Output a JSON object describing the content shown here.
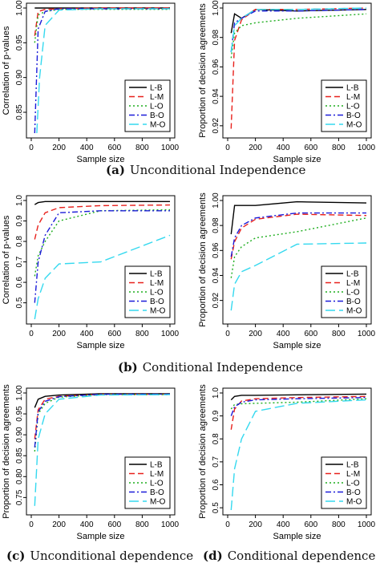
{
  "captions": {
    "a_letter": "(a)",
    "a_text": "Unconditional Independence",
    "b_letter": "(b)",
    "b_text": "Conditional Independence",
    "c_letter": "(c)",
    "c_text": "Unconditional dependence",
    "d_letter": "(d)",
    "d_text": "Conditional dependence"
  },
  "series_styles": {
    "L-B": {
      "color": "#000000",
      "dash": "none"
    },
    "L-M": {
      "color": "#e8211c",
      "dash": "7,4"
    },
    "L-O": {
      "color": "#1fae1f",
      "dash": "2,3"
    },
    "B-O": {
      "color": "#1b1bd9",
      "dash": "7,3,2,3"
    },
    "M-O": {
      "color": "#35d9ef",
      "dash": "12,5"
    }
  },
  "chart_data": [
    {
      "id": "a_left",
      "type": "line",
      "xlabel": "Sample size",
      "ylabel": "Correlation of p-values",
      "xlim": [
        0,
        1000
      ],
      "ylim": [
        0.82,
        1.0
      ],
      "xticks": [
        0,
        200,
        400,
        600,
        800,
        1000
      ],
      "yticks": [
        0.85,
        0.9,
        0.95,
        1.0
      ],
      "legend": "bottom-right",
      "series": [
        {
          "name": "L-B",
          "x": [
            25,
            50,
            100,
            200,
            500,
            1000
          ],
          "y": [
            1.0,
            1.0,
            1.0,
            1.0,
            1.0,
            1.0
          ]
        },
        {
          "name": "L-M",
          "x": [
            25,
            50,
            100,
            200,
            500,
            1000
          ],
          "y": [
            0.96,
            0.995,
            0.998,
            0.999,
            1.0,
            1.0
          ]
        },
        {
          "name": "L-O",
          "x": [
            25,
            50,
            100,
            200,
            500,
            1000
          ],
          "y": [
            0.95,
            0.99,
            0.995,
            0.998,
            0.998,
            0.998
          ]
        },
        {
          "name": "B-O",
          "x": [
            25,
            50,
            100,
            200,
            500,
            1000
          ],
          "y": [
            0.82,
            0.97,
            0.995,
            0.999,
            0.999,
            0.999
          ]
        },
        {
          "name": "M-O",
          "x": [
            40,
            60,
            100,
            200,
            500,
            1000
          ],
          "y": [
            0.82,
            0.9,
            0.975,
            0.997,
            0.999,
            0.999
          ]
        }
      ]
    },
    {
      "id": "a_right",
      "type": "line",
      "xlabel": "Sample size",
      "ylabel": "Proportion of decision agreements",
      "xlim": [
        0,
        1000
      ],
      "ylim": [
        0.915,
        1.0
      ],
      "xticks": [
        0,
        200,
        400,
        600,
        800,
        1000
      ],
      "yticks": [
        0.92,
        0.94,
        0.96,
        0.98,
        1.0
      ],
      "legend": "bottom-right",
      "series": [
        {
          "name": "L-B",
          "x": [
            25,
            50,
            100,
            200,
            500,
            1000
          ],
          "y": [
            0.983,
            0.996,
            0.993,
            0.999,
            0.998,
            0.999
          ]
        },
        {
          "name": "L-M",
          "x": [
            25,
            50,
            100,
            200,
            500,
            1000
          ],
          "y": [
            0.918,
            0.978,
            0.992,
            0.999,
            0.999,
            1.0
          ]
        },
        {
          "name": "L-O",
          "x": [
            25,
            50,
            100,
            200,
            500,
            1000
          ],
          "y": [
            0.966,
            0.983,
            0.988,
            0.99,
            0.993,
            0.996
          ]
        },
        {
          "name": "B-O",
          "x": [
            25,
            50,
            100,
            200,
            500,
            1000
          ],
          "y": [
            0.97,
            0.99,
            0.993,
            0.998,
            0.998,
            0.999
          ]
        },
        {
          "name": "M-O",
          "x": [
            25,
            50,
            100,
            200,
            500,
            1000
          ],
          "y": [
            0.97,
            0.988,
            0.993,
            0.999,
            0.999,
            1.0
          ]
        }
      ]
    },
    {
      "id": "b_left",
      "type": "line",
      "xlabel": "Sample size",
      "ylabel": "Correlation of p-values",
      "xlim": [
        0,
        1000
      ],
      "ylim": [
        0.42,
        1.0
      ],
      "xticks": [
        0,
        200,
        400,
        600,
        800,
        1000
      ],
      "yticks": [
        0.5,
        0.6,
        0.7,
        0.8,
        0.9,
        1.0
      ],
      "legend": "bottom-right",
      "series": [
        {
          "name": "L-B",
          "x": [
            25,
            50,
            100,
            200,
            500,
            1000
          ],
          "y": [
            0.98,
            0.99,
            0.995,
            0.995,
            0.995,
            0.995
          ]
        },
        {
          "name": "L-M",
          "x": [
            25,
            50,
            100,
            200,
            500,
            1000
          ],
          "y": [
            0.81,
            0.88,
            0.94,
            0.965,
            0.975,
            0.978
          ]
        },
        {
          "name": "L-O",
          "x": [
            25,
            50,
            100,
            200,
            500,
            1000
          ],
          "y": [
            0.63,
            0.73,
            0.8,
            0.9,
            0.95,
            0.955
          ]
        },
        {
          "name": "B-O",
          "x": [
            25,
            50,
            100,
            200,
            500,
            1000
          ],
          "y": [
            0.5,
            0.7,
            0.83,
            0.94,
            0.95,
            0.95
          ]
        },
        {
          "name": "M-O",
          "x": [
            25,
            50,
            100,
            200,
            500,
            1000
          ],
          "y": [
            0.42,
            0.52,
            0.62,
            0.69,
            0.7,
            0.83
          ]
        }
      ]
    },
    {
      "id": "b_right",
      "type": "line",
      "xlabel": "Sample size",
      "ylabel": "Proportion of decision agreements",
      "xlim": [
        0,
        1000
      ],
      "ylim": [
        0.905,
        1.0
      ],
      "xticks": [
        0,
        200,
        400,
        600,
        800,
        1000
      ],
      "yticks": [
        0.92,
        0.94,
        0.96,
        0.98,
        1.0
      ],
      "legend": "bottom-right",
      "series": [
        {
          "name": "L-B",
          "x": [
            25,
            50,
            100,
            200,
            500,
            1000
          ],
          "y": [
            0.973,
            0.996,
            0.996,
            0.996,
            0.999,
            0.998
          ]
        },
        {
          "name": "L-M",
          "x": [
            25,
            50,
            100,
            200,
            500,
            1000
          ],
          "y": [
            0.953,
            0.967,
            0.978,
            0.985,
            0.989,
            0.988
          ]
        },
        {
          "name": "L-O",
          "x": [
            25,
            50,
            100,
            200,
            500,
            1000
          ],
          "y": [
            0.938,
            0.955,
            0.963,
            0.97,
            0.975,
            0.986
          ]
        },
        {
          "name": "B-O",
          "x": [
            25,
            50,
            100,
            200,
            500,
            1000
          ],
          "y": [
            0.955,
            0.97,
            0.98,
            0.986,
            0.99,
            0.99
          ]
        },
        {
          "name": "M-O",
          "x": [
            25,
            50,
            100,
            200,
            500,
            1000
          ],
          "y": [
            0.912,
            0.933,
            0.943,
            0.948,
            0.965,
            0.966
          ]
        }
      ]
    },
    {
      "id": "c_left",
      "type": "line",
      "xlabel": "Sample size",
      "ylabel": "Proportion of decision agreements",
      "xlim": [
        0,
        1000
      ],
      "ylim": [
        0.72,
        1.0
      ],
      "xticks": [
        0,
        200,
        400,
        600,
        800,
        1000
      ],
      "yticks": [
        0.75,
        0.8,
        0.85,
        0.9,
        0.95,
        1.0
      ],
      "legend": "bottom-right",
      "series": [
        {
          "name": "L-B",
          "x": [
            25,
            50,
            100,
            200,
            500,
            1000
          ],
          "y": [
            0.965,
            0.985,
            0.992,
            0.995,
            0.998,
            0.998
          ]
        },
        {
          "name": "L-M",
          "x": [
            25,
            50,
            100,
            200,
            500,
            1000
          ],
          "y": [
            0.89,
            0.96,
            0.985,
            0.992,
            0.997,
            0.997
          ]
        },
        {
          "name": "L-O",
          "x": [
            25,
            50,
            100,
            200,
            500,
            1000
          ],
          "y": [
            0.86,
            0.95,
            0.975,
            0.99,
            0.996,
            0.996
          ]
        },
        {
          "name": "B-O",
          "x": [
            25,
            50,
            100,
            200,
            500,
            1000
          ],
          "y": [
            0.87,
            0.955,
            0.98,
            0.991,
            0.997,
            0.997
          ]
        },
        {
          "name": "M-O",
          "x": [
            25,
            50,
            100,
            200,
            500,
            1000
          ],
          "y": [
            0.73,
            0.89,
            0.95,
            0.985,
            0.995,
            0.996
          ]
        }
      ]
    },
    {
      "id": "d_left",
      "type": "line",
      "xlabel": "Sample size",
      "ylabel": "Proportion of decision agreements",
      "xlim": [
        0,
        1000
      ],
      "ylim": [
        0.49,
        1.0
      ],
      "xticks": [
        0,
        200,
        400,
        600,
        800,
        1000
      ],
      "yticks": [
        0.5,
        0.6,
        0.7,
        0.8,
        0.9,
        1.0
      ],
      "legend": "bottom-right",
      "series": [
        {
          "name": "L-B",
          "x": [
            25,
            50,
            100,
            200,
            500,
            1000
          ],
          "y": [
            0.97,
            0.985,
            0.99,
            0.99,
            0.992,
            0.995
          ]
        },
        {
          "name": "L-M",
          "x": [
            25,
            50,
            100,
            200,
            500,
            1000
          ],
          "y": [
            0.84,
            0.93,
            0.965,
            0.975,
            0.98,
            0.985
          ]
        },
        {
          "name": "L-O",
          "x": [
            25,
            50,
            100,
            200,
            500,
            1000
          ],
          "y": [
            0.93,
            0.95,
            0.953,
            0.955,
            0.96,
            0.975
          ]
        },
        {
          "name": "B-O",
          "x": [
            25,
            50,
            100,
            200,
            500,
            1000
          ],
          "y": [
            0.9,
            0.94,
            0.96,
            0.97,
            0.975,
            0.98
          ]
        },
        {
          "name": "M-O",
          "x": [
            25,
            50,
            100,
            200,
            500,
            1000
          ],
          "y": [
            0.49,
            0.67,
            0.8,
            0.92,
            0.955,
            0.97
          ]
        }
      ]
    }
  ]
}
